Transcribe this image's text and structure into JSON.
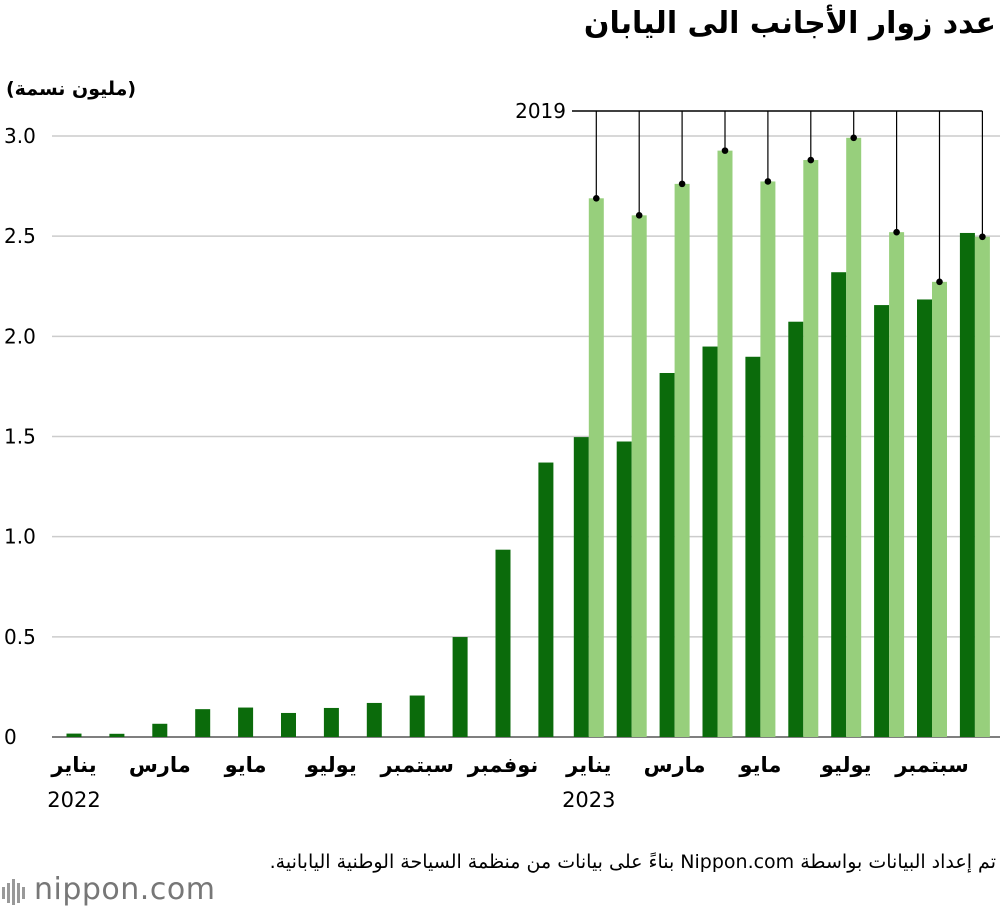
{
  "header": {
    "title": "عدد زوار الأجانب الى اليابان",
    "unit_label": "(مليون نسمة)"
  },
  "footer": {
    "source": "تم إعداد البيانات بواسطة Nippon.com بناءً على بيانات من منظمة السياحة الوطنية اليابانية.",
    "logo_text": "nippon.com"
  },
  "colors": {
    "current": "#0b6b0b",
    "ref2019": "#97cf7c",
    "grid": "#cccccc",
    "logo_dot": "#e60012"
  },
  "chart_data": {
    "type": "bar",
    "title": "عدد زوار الأجانب الى اليابان",
    "ylabel": "(مليون نسمة)",
    "ylim": [
      0,
      3.0
    ],
    "yticks": [
      "0",
      "0.5",
      "1.0",
      "1.5",
      "2.0",
      "2.5",
      "3.0"
    ],
    "yticks_values": [
      0,
      0.5,
      1.0,
      1.5,
      2.0,
      2.5,
      3.0
    ],
    "x_tick_labels": [
      {
        "index": 0,
        "label": "يناير",
        "year": "2022"
      },
      {
        "index": 2,
        "label": "مارس"
      },
      {
        "index": 4,
        "label": "مايو"
      },
      {
        "index": 6,
        "label": "يوليو"
      },
      {
        "index": 8,
        "label": "سبتمبر"
      },
      {
        "index": 10,
        "label": "نوفمبر"
      },
      {
        "index": 12,
        "label": "يناير",
        "year": "2023"
      },
      {
        "index": 14,
        "label": "مارس"
      },
      {
        "index": 16,
        "label": "مايو"
      },
      {
        "index": 18,
        "label": "يوليو"
      },
      {
        "index": 20,
        "label": "سبتمبر"
      }
    ],
    "reference_label": "2019",
    "series": [
      {
        "name": "2022-2023",
        "values": [
          0.017,
          0.016,
          0.066,
          0.139,
          0.147,
          0.12,
          0.145,
          0.17,
          0.207,
          0.499,
          0.935,
          1.37,
          1.497,
          1.475,
          1.817,
          1.949,
          1.898,
          2.073,
          2.32,
          2.156,
          2.184,
          2.516
        ]
      },
      {
        "name": "2019",
        "values": [
          null,
          null,
          null,
          null,
          null,
          null,
          null,
          null,
          null,
          null,
          null,
          null,
          2.689,
          2.604,
          2.761,
          2.927,
          2.773,
          2.88,
          2.991,
          2.52,
          2.272,
          2.497
        ]
      }
    ]
  }
}
